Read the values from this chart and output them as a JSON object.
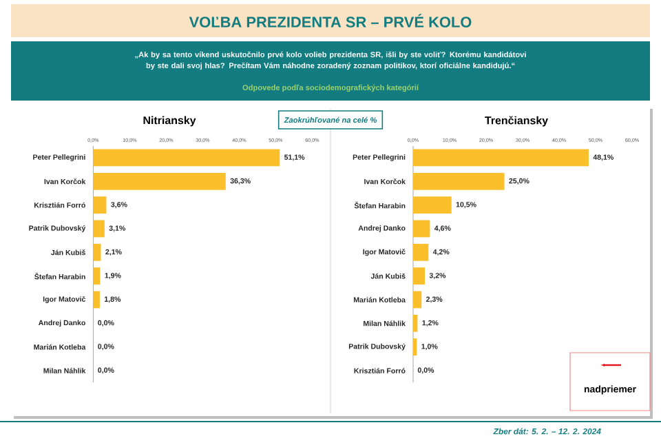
{
  "chart_data": [
    {
      "type": "bar",
      "orientation": "horizontal",
      "title": "Nitriansky",
      "categories": [
        "Peter Pellegrini",
        "Ivan Korčok",
        "Krisztián Forró",
        "Patrik Dubovský",
        "Ján Kubiš",
        "Štefan Harabin",
        "Igor Matovič",
        "Andrej Danko",
        "Marián Kotleba",
        "Milan Náhlik"
      ],
      "values": [
        51.1,
        36.3,
        3.6,
        3.1,
        2.1,
        1.9,
        1.8,
        0.0,
        0.0,
        0.0
      ],
      "value_labels": [
        "51,1%",
        "36,3%",
        "3,6%",
        "3,1%",
        "2,1%",
        "1,9%",
        "1,8%",
        "0,0%",
        "0,0%",
        "0,0%"
      ],
      "color": "#fbbf2c",
      "xlim": [
        0,
        60
      ],
      "xticks": [
        {
          "value": 0,
          "label": "0,0%"
        },
        {
          "value": 10,
          "label": "10,0%"
        },
        {
          "value": 20,
          "label": "20,0%"
        },
        {
          "value": 30,
          "label": "30,0%"
        },
        {
          "value": 40,
          "label": "40,0%"
        },
        {
          "value": 50,
          "label": "50,0%"
        },
        {
          "value": 60,
          "label": "60,0%"
        }
      ],
      "annotations": [
        "VOĽBA PREZIDENTA SR – PRVÉ KOLO",
        "„Ak by sa tento víkend uskutočnilo prvé kolo volieb prezidenta SR, išli by ste voliť? Ktorému kandidátovi by ste dali svoj hlas? Prečítam Vám náhodne zoradený zoznam politikov, ktorí oficiálne kandidujú.“",
        "Odpovede podľa sociodemografických kategórií",
        "Zaokrúhľované na celé %"
      ]
    },
    {
      "type": "bar",
      "orientation": "horizontal",
      "title": "Trenčiansky",
      "categories": [
        "Peter Pellegrini",
        "Ivan Korčok",
        "Štefan Harabin",
        "Andrej Danko",
        "Igor Matovič",
        "Ján Kubiš",
        "Marián Kotleba",
        "Milan Náhlik",
        "Patrik Dubovský",
        "Krisztián Forró"
      ],
      "values": [
        48.1,
        25.0,
        10.5,
        4.6,
        4.2,
        3.2,
        2.3,
        1.2,
        1.0,
        0.0
      ],
      "value_labels": [
        "48,1%",
        "25,0%",
        "10,5%",
        "4,6%",
        "4,2%",
        "3,2%",
        "2,3%",
        "1,2%",
        "1,0%",
        "0,0%"
      ],
      "color": "#fbbf2c",
      "xlim": [
        0,
        60
      ],
      "xticks": [
        {
          "value": 0,
          "label": "0,0%"
        },
        {
          "value": 10,
          "label": "10,0%"
        },
        {
          "value": 20,
          "label": "20,0%"
        },
        {
          "value": 30,
          "label": "30,0%"
        },
        {
          "value": 40,
          "label": "40,0%"
        },
        {
          "value": 50,
          "label": "50,0%"
        },
        {
          "value": 60,
          "label": "60,0%"
        }
      ],
      "annotations": [
        "nadpriemer",
        "Zber dát: 5. 2. – 12. 2. 2024"
      ]
    }
  ]
}
